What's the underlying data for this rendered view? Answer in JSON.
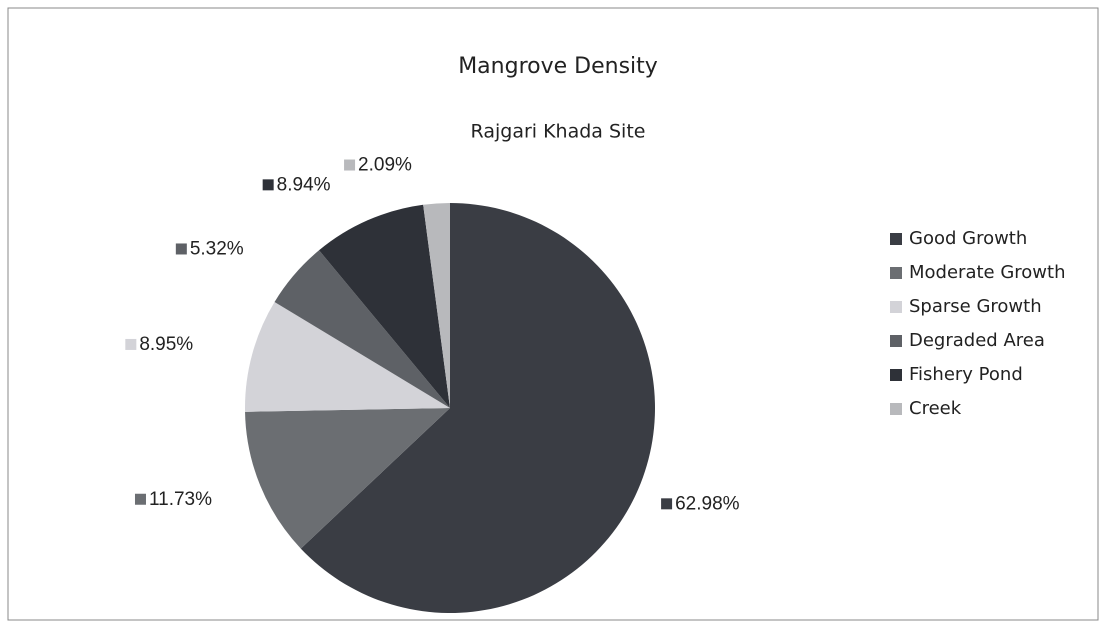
{
  "chart_data": {
    "type": "pie",
    "title": "Mangrove Density",
    "subtitle": "Rajgari Khada Site",
    "categories": [
      "Good Growth",
      "Moderate Growth",
      "Sparse Growth",
      "Degraded Area",
      "Fishery Pond",
      "Creek"
    ],
    "values": [
      62.98,
      11.73,
      8.95,
      5.32,
      8.94,
      2.09
    ],
    "value_labels": [
      "62.98%",
      "11.73%",
      "8.95%",
      "5.32%",
      "8.94%",
      "2.09%"
    ],
    "colors": [
      "#3a3d44",
      "#6b6e72",
      "#d3d3d8",
      "#5e6166",
      "#2e3138",
      "#b8b9bc"
    ],
    "legend": "right"
  }
}
